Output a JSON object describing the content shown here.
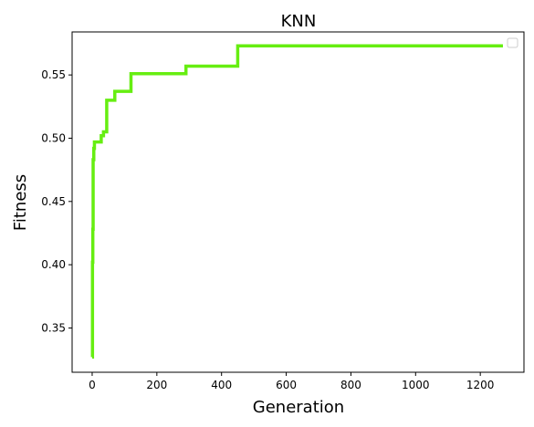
{
  "chart_data": {
    "type": "line",
    "title": "KNN",
    "xlabel": "Generation",
    "ylabel": "Fitness",
    "xlim": [
      -62,
      1335
    ],
    "ylim": [
      0.315,
      0.584
    ],
    "xticks": [
      0,
      200,
      400,
      600,
      800,
      1000,
      1200
    ],
    "yticks": [
      0.35,
      0.4,
      0.45,
      0.5,
      0.55
    ],
    "ytick_labels": [
      "0.35",
      "0.40",
      "0.45",
      "0.50",
      "0.55"
    ],
    "grid": false,
    "legend": "top-right (empty)",
    "line_color": "#66ee11",
    "series": [
      {
        "step": true,
        "x": [
          0,
          1,
          2,
          3,
          5,
          7,
          10,
          12,
          15,
          28,
          30,
          35,
          45,
          60,
          70,
          120,
          290,
          450,
          1270
        ],
        "y": [
          0.327,
          0.402,
          0.428,
          0.483,
          0.492,
          0.497,
          0.497,
          0.497,
          0.497,
          0.502,
          0.502,
          0.505,
          0.53,
          0.53,
          0.537,
          0.551,
          0.557,
          0.573,
          0.573
        ]
      }
    ]
  }
}
